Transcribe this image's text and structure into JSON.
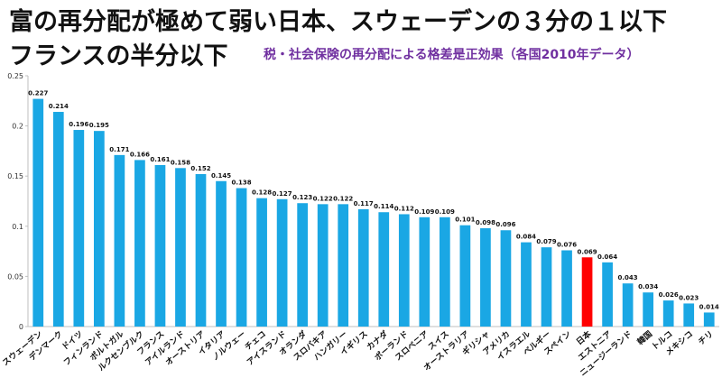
{
  "header": {
    "title_line1": "富の再分配が極めて弱い日本、スウェーデンの３分の１以下",
    "title_line2": "フランスの半分以下",
    "subtitle": "税・社会保険の再分配による格差是正効果（各国2010年データ）"
  },
  "colors": {
    "bar": "#1aa7e4",
    "highlight": "#ff0000",
    "axis": "#bfbfbf"
  },
  "chart_data": {
    "type": "bar",
    "title": "税・社会保険の再分配による格差是正効果（各国2010年データ）",
    "categories": [
      "スウェーデン",
      "デンマーク",
      "ドイツ",
      "フィンランド",
      "ポルトガル",
      "ルクセンブルク",
      "フランス",
      "アイルランド",
      "オーストリア",
      "イタリア",
      "ノルウェー",
      "チェコ",
      "アイスランド",
      "オランダ",
      "スロバキア",
      "ハンガリー",
      "イギリス",
      "カナダ",
      "ポーランド",
      "スロベニア",
      "スイス",
      "オーストラリア",
      "ギリシャ",
      "アメリカ",
      "イスラエル",
      "ベルギー",
      "スペイン",
      "日本",
      "エストニア",
      "ニュージーランド",
      "韓国",
      "トルコ",
      "メキシコ",
      "チリ"
    ],
    "values": [
      0.227,
      0.214,
      0.196,
      0.195,
      0.171,
      0.166,
      0.161,
      0.158,
      0.152,
      0.145,
      0.138,
      0.128,
      0.127,
      0.123,
      0.122,
      0.122,
      0.117,
      0.114,
      0.112,
      0.109,
      0.109,
      0.101,
      0.098,
      0.096,
      0.084,
      0.079,
      0.076,
      0.069,
      0.064,
      0.043,
      0.034,
      0.026,
      0.023,
      0.014
    ],
    "data_labels": [
      "0.227",
      "0.214",
      "0.196",
      "0.195",
      "0.171",
      "0.166",
      "0.161",
      "0.158",
      "0.152",
      "0.145",
      "0.138",
      "0.128",
      "0.127",
      "0.123",
      "0.122",
      "0.122",
      "0.117",
      "0.114",
      "0.112",
      "0.109",
      "0.109",
      "0.101",
      "0.098",
      "0.096",
      "0.084",
      "0.079",
      "0.076",
      "0.069",
      "0.064",
      "0.043",
      "0.034",
      "0.026",
      "0.023",
      "0.014"
    ],
    "highlight_category": "日本",
    "yticks": [
      0,
      0.05,
      0.1,
      0.15,
      0.2,
      0.25
    ],
    "ytick_labels": [
      "0",
      "0.05",
      "0.1",
      "0.15",
      "0.2",
      "0.25"
    ],
    "ylim": [
      0,
      0.25
    ],
    "xlabel": "",
    "ylabel": "",
    "grid": false,
    "legend": "none"
  }
}
